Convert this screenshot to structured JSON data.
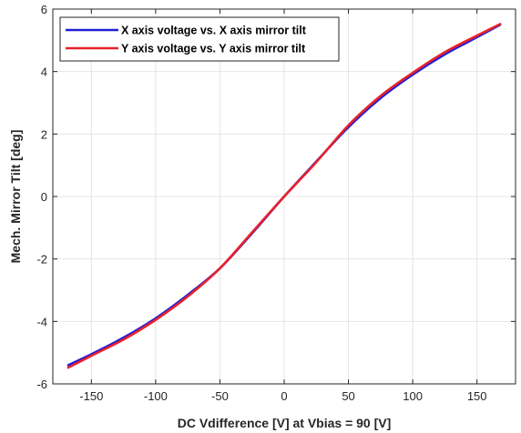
{
  "chart_data": {
    "type": "line",
    "title": "",
    "xlabel": "DC Vdifference [V] at Vbias = 90 [V]",
    "ylabel": "Mech. Mirror Tilt [deg]",
    "xlim": [
      -180,
      180
    ],
    "ylim": [
      -6,
      6
    ],
    "xticks": [
      -150,
      -100,
      -50,
      0,
      50,
      100,
      150
    ],
    "yticks": [
      -6,
      -4,
      -2,
      0,
      2,
      4,
      6
    ],
    "grid": true,
    "legend_position": "top-left",
    "series": [
      {
        "name": "X axis voltage vs. X axis mirror tilt",
        "color": "#1f1fd6",
        "x": [
          -168,
          -150,
          -125,
          -100,
          -75,
          -50,
          -25,
          0,
          25,
          50,
          75,
          100,
          125,
          150,
          168
        ],
        "y": [
          -5.4,
          -5.05,
          -4.52,
          -3.9,
          -3.15,
          -2.3,
          -1.18,
          0.0,
          1.12,
          2.22,
          3.15,
          3.9,
          4.55,
          5.1,
          5.5
        ]
      },
      {
        "name": "Y axis voltage vs. Y axis mirror tilt",
        "color": "#e8212b",
        "x": [
          -168,
          -150,
          -125,
          -100,
          -75,
          -50,
          -25,
          0,
          25,
          50,
          75,
          100,
          125,
          150,
          168
        ],
        "y": [
          -5.48,
          -5.1,
          -4.58,
          -3.95,
          -3.2,
          -2.3,
          -1.15,
          0.0,
          1.1,
          2.28,
          3.22,
          3.96,
          4.62,
          5.15,
          5.52
        ]
      }
    ]
  }
}
